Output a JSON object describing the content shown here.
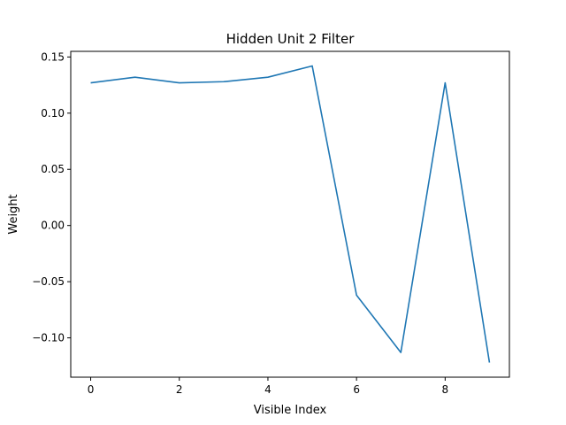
{
  "chart_data": {
    "type": "line",
    "title": "Hidden Unit 2 Filter",
    "xlabel": "Visible Index",
    "ylabel": "Weight",
    "xlim": [
      -0.45,
      9.45
    ],
    "ylim": [
      -0.135,
      0.155
    ],
    "x_ticks": [
      0,
      2,
      4,
      6,
      8
    ],
    "x_tick_labels": [
      "0",
      "2",
      "4",
      "6",
      "8"
    ],
    "y_ticks": [
      0.15,
      0.1,
      0.05,
      0.0,
      -0.05,
      -0.1
    ],
    "y_tick_labels": [
      "0.15",
      "0.10",
      "0.05",
      "0.00",
      "−0.05",
      "−0.10"
    ],
    "grid": false,
    "series": [
      {
        "color": "#1f77b4",
        "x": [
          0,
          1,
          2,
          3,
          4,
          5,
          6,
          7,
          8,
          9
        ],
        "y": [
          0.127,
          0.132,
          0.127,
          0.128,
          0.132,
          0.142,
          -0.062,
          -0.113,
          0.127,
          -0.122
        ]
      }
    ]
  }
}
